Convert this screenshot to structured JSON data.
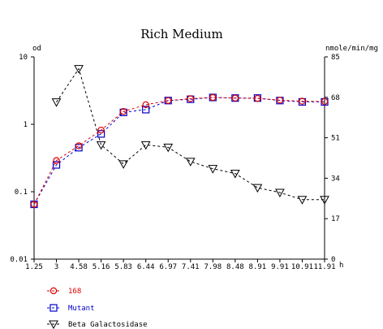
{
  "chart_data": {
    "type": "line",
    "title": "Rich Medium",
    "left_axis": {
      "label": "od",
      "scale": "log",
      "range": [
        0.01,
        10
      ],
      "tick_labels": [
        "10",
        "1",
        "0.1",
        "0.01"
      ],
      "tick_values": [
        10,
        1,
        0.1,
        0.01
      ]
    },
    "right_axis": {
      "label": "nmole/min/mg",
      "scale": "linear",
      "range": [
        0,
        85
      ],
      "tick_labels": [
        "85",
        "68",
        "51",
        "34",
        "17",
        "0"
      ],
      "tick_values": [
        85,
        68,
        51,
        34,
        17,
        0
      ]
    },
    "x_axis": {
      "unit": "h",
      "range": [
        1.25,
        11.91
      ],
      "tick_values": [
        1.25,
        3,
        4.58,
        5.16,
        5.83,
        6.44,
        6.97,
        7.41,
        7.98,
        8.48,
        8.91,
        9.91,
        10.91,
        11.91
      ],
      "tick_labels": [
        "1.25",
        "3",
        "4.58",
        "5.16",
        "5.83",
        "6.44",
        "6.97",
        "7.41",
        "7.98",
        "8.48",
        "8.91",
        "9.91",
        "10.91",
        "11.91"
      ]
    },
    "series": [
      {
        "name": "168",
        "axis": "left",
        "color": "#dd0000",
        "marker": "circle",
        "x": [
          1.25,
          3,
          4.58,
          5.16,
          5.83,
          6.44,
          6.97,
          7.41,
          7.98,
          8.48,
          8.91,
          9.91,
          10.91,
          11.91
        ],
        "y": [
          0.065,
          0.29,
          0.48,
          0.82,
          1.55,
          1.95,
          2.25,
          2.4,
          2.5,
          2.45,
          2.42,
          2.28,
          2.2,
          2.18
        ]
      },
      {
        "name": "Mutant",
        "axis": "left",
        "color": "#0000cc",
        "marker": "square",
        "x": [
          1.25,
          3,
          4.58,
          5.16,
          5.83,
          6.44,
          6.97,
          7.41,
          7.98,
          8.48,
          8.91,
          9.91,
          10.91,
          11.91
        ],
        "y": [
          0.065,
          0.25,
          0.45,
          0.72,
          1.5,
          1.65,
          2.25,
          2.35,
          2.5,
          2.45,
          2.45,
          2.25,
          2.15,
          2.15
        ]
      },
      {
        "name": "Beta Galactosidase",
        "axis": "right",
        "color": "#000000",
        "marker": "triangle-down",
        "x": [
          3,
          4.58,
          5.16,
          5.83,
          6.44,
          6.97,
          7.41,
          7.98,
          8.48,
          8.91,
          9.91,
          10.91,
          11.91
        ],
        "y": [
          66,
          80,
          48,
          40,
          48,
          47,
          41,
          38,
          36,
          30,
          28,
          25,
          25
        ]
      }
    ],
    "legend_position": "bottom-left",
    "grid": false
  }
}
